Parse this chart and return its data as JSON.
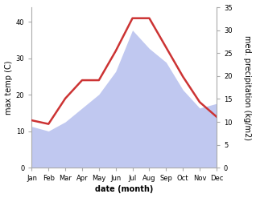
{
  "months": [
    "Jan",
    "Feb",
    "Mar",
    "Apr",
    "May",
    "Jun",
    "Jul",
    "Aug",
    "Sep",
    "Oct",
    "Nov",
    "Dec"
  ],
  "temp": [
    13,
    12,
    19,
    24,
    24,
    32,
    41,
    41,
    33,
    25,
    18,
    14
  ],
  "precip": [
    9,
    8,
    10,
    13,
    16,
    21,
    30,
    26,
    23,
    17,
    13,
    14
  ],
  "temp_color": "#cc3333",
  "precip_color": "#c0c8f0",
  "temp_ylim": [
    0,
    44
  ],
  "precip_ylim": [
    0,
    35
  ],
  "temp_yticks": [
    0,
    10,
    20,
    30,
    40
  ],
  "precip_yticks": [
    0,
    5,
    10,
    15,
    20,
    25,
    30,
    35
  ],
  "xlabel": "date (month)",
  "ylabel_left": "max temp (C)",
  "ylabel_right": "med. precipitation (kg/m2)",
  "bg_color": "#ffffff",
  "fig_width": 3.18,
  "fig_height": 2.47,
  "dpi": 100
}
